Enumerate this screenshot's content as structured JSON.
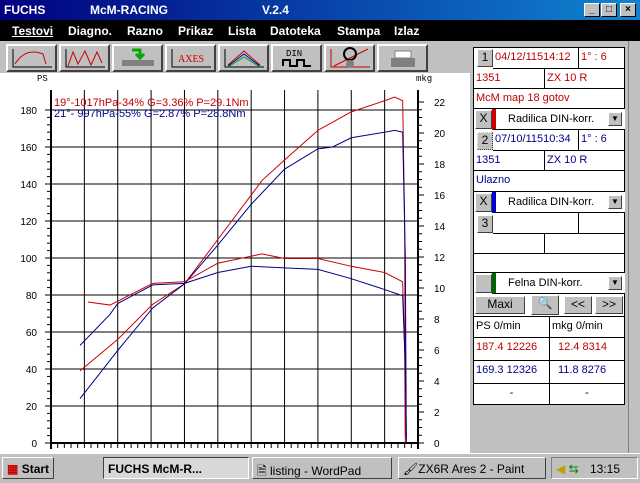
{
  "window": {
    "title_left": "FUCHS",
    "title_mid": "McM-RACING",
    "version": "V.2.4",
    "minimize": "_",
    "maximize": "□",
    "close": "×"
  },
  "menu": [
    "Testovi",
    "Diagno.",
    "Razno",
    "Prikaz",
    "Lista",
    "Datoteka",
    "Stampa",
    "Izlaz"
  ],
  "toolbar": [
    {
      "icon": "power-curve-icon"
    },
    {
      "icon": "multi-curve-icon"
    },
    {
      "icon": "export-arrow-icon"
    },
    {
      "icon": "axes-icon",
      "label": "AXES"
    },
    {
      "icon": "color-curves-icon"
    },
    {
      "icon": "din-icon",
      "label": "DIN"
    },
    {
      "icon": "wheel-calibration-icon"
    },
    {
      "icon": "printer-icon"
    }
  ],
  "panel": {
    "run1": {
      "num": "1",
      "datetime": "04/12/11514:12",
      "gear": "1° : 6",
      "id": "1351",
      "model": "ZX 10 R",
      "note": "McM map 18 gotov",
      "x": "X",
      "correction": "Radilica DIN-korr.",
      "color": "#cc0000"
    },
    "run2": {
      "num": "2",
      "datetime": "07/10/11510:34",
      "gear": "1° : 6",
      "id": "1351",
      "model": "ZX 10 R",
      "note": "Ulazno",
      "x": "X",
      "correction": "Radilica DIN-korr.",
      "color": "#0000cc"
    },
    "run3": {
      "num": "3"
    },
    "wheel": {
      "correction": "Felna DIN-korr.",
      "color": "#006400"
    },
    "buttons": {
      "maxi": "Maxi",
      "prev": "<<",
      "next": ">>"
    },
    "table": {
      "headers": [
        "PS   0/min",
        "mkg  0/min"
      ],
      "rows": [
        [
          "187.4 12226",
          "12.4  8314"
        ],
        [
          "169.3 12326",
          "11.8  8276"
        ],
        [
          "-",
          "-"
        ]
      ]
    }
  },
  "taskbar": {
    "start": "Start",
    "tasks": [
      "FUCHS          McM-R...",
      "listing - WordPad",
      "ZX6R Ares 2 - Paint"
    ],
    "clock": "13:15"
  },
  "chart_data": {
    "type": "line",
    "ylabel": "PS",
    "y2label": "mkg",
    "ylim": [
      0,
      180
    ],
    "y2lim": [
      0,
      22
    ],
    "yticks": [
      0,
      20,
      40,
      60,
      80,
      100,
      120,
      140,
      160,
      180
    ],
    "y2ticks": [
      0,
      2,
      4,
      6,
      8,
      10,
      12,
      14,
      16,
      18,
      20,
      22
    ],
    "grid": true,
    "legend": [
      "19°-1017hPa-34% G=3.36% P=29.1Nm",
      "21°- 997hPa-55% G=2.87% P=28.8Nm"
    ],
    "legend_position": "top-left",
    "series": [
      {
        "kind": "power",
        "axis": "left",
        "color": "#cc0000",
        "x": [
          2870,
          4000,
          5050,
          6000,
          7000,
          8000,
          8330,
          9000,
          10000,
          11000,
          12000,
          12300,
          12540,
          12600,
          12620
        ],
        "y": [
          39,
          56,
          75,
          86,
          110,
          134,
          142,
          153,
          169,
          179,
          185,
          187,
          185,
          120,
          0
        ]
      },
      {
        "kind": "power",
        "axis": "left",
        "color": "#00008b",
        "x": [
          2870,
          4000,
          5050,
          6000,
          7000,
          8000,
          9000,
          10000,
          10440,
          11000,
          12000,
          12300,
          12540,
          12620,
          12650
        ],
        "y": [
          24,
          50,
          73,
          86,
          107,
          129,
          148,
          159,
          160,
          165,
          168,
          169,
          168,
          100,
          0
        ]
      },
      {
        "kind": "torque",
        "axis": "right",
        "color": "#cc0000",
        "x": [
          3110,
          3770,
          5050,
          6000,
          7000,
          8320,
          9000,
          10000,
          11000,
          12000,
          12540,
          12600,
          12620
        ],
        "y": [
          9.1,
          8.9,
          10.3,
          10.4,
          11.6,
          12.2,
          11.9,
          11.9,
          11.4,
          11.0,
          10.4,
          6,
          0.5
        ]
      },
      {
        "kind": "torque",
        "axis": "right",
        "color": "#00008b",
        "x": [
          2870,
          3770,
          4000,
          5050,
          6000,
          7000,
          8000,
          9000,
          10000,
          11000,
          12000,
          12540,
          12620,
          12650
        ],
        "y": [
          6.3,
          8.3,
          9.0,
          10.2,
          10.3,
          11.0,
          11.4,
          11.3,
          11.2,
          10.6,
          9.9,
          9.5,
          5,
          0.3
        ]
      }
    ],
    "xlim": [
      2000,
      13000
    ]
  }
}
